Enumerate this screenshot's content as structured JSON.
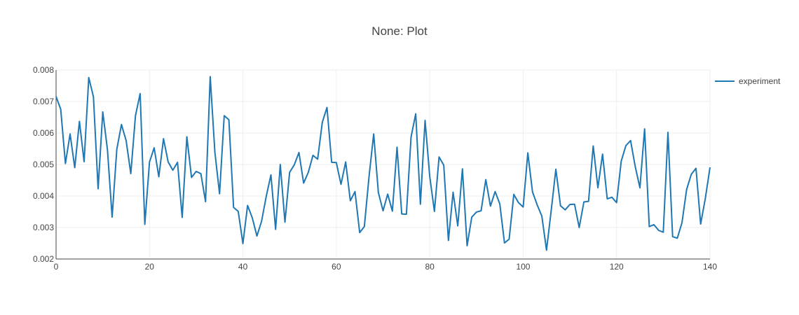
{
  "chart_data": {
    "type": "line",
    "title": "None: Plot",
    "xlabel": "",
    "ylabel": "",
    "xlim": [
      0,
      140
    ],
    "ylim": [
      0.002,
      0.008
    ],
    "x_ticks": [
      "0",
      "20",
      "40",
      "60",
      "80",
      "100",
      "120",
      "140"
    ],
    "y_ticks": [
      "0.002",
      "0.003",
      "0.004",
      "0.005",
      "0.006",
      "0.007",
      "0.008"
    ],
    "grid": true,
    "legend_position": "top-right",
    "colors": {
      "line": "#1f77b4",
      "grid": "#eeeeee",
      "axis": "#444444",
      "text": "#444444"
    },
    "series": [
      {
        "name": "experiment",
        "x": [
          0,
          1,
          2,
          3,
          4,
          5,
          6,
          7,
          8,
          9,
          10,
          11,
          12,
          13,
          14,
          15,
          16,
          17,
          18,
          19,
          20,
          21,
          22,
          23,
          24,
          25,
          26,
          27,
          28,
          29,
          30,
          31,
          32,
          33,
          34,
          35,
          36,
          37,
          38,
          39,
          40,
          41,
          42,
          43,
          44,
          45,
          46,
          47,
          48,
          49,
          50,
          51,
          52,
          53,
          54,
          55,
          56,
          57,
          58,
          59,
          60,
          61,
          62,
          63,
          64,
          65,
          66,
          67,
          68,
          69,
          70,
          71,
          72,
          73,
          74,
          75,
          76,
          77,
          78,
          79,
          80,
          81,
          82,
          83,
          84,
          85,
          86,
          87,
          88,
          89,
          90,
          91,
          92,
          93,
          94,
          95,
          96,
          97,
          98,
          99,
          100,
          101,
          102,
          103,
          104,
          105,
          106,
          107,
          108,
          109,
          110,
          111,
          112,
          113,
          114,
          115,
          116,
          117,
          118,
          119,
          120,
          121,
          122,
          123,
          124,
          125,
          126,
          127,
          128,
          129,
          130,
          131,
          132,
          133,
          134,
          135,
          136,
          137,
          138,
          139,
          140
        ],
        "y": [
          0.00716,
          0.00675,
          0.00503,
          0.00597,
          0.0049,
          0.00637,
          0.00509,
          0.00776,
          0.00715,
          0.00423,
          0.00667,
          0.00547,
          0.00333,
          0.00548,
          0.00627,
          0.00576,
          0.00471,
          0.00655,
          0.00725,
          0.0031,
          0.00508,
          0.00553,
          0.00461,
          0.00582,
          0.00508,
          0.00482,
          0.00507,
          0.00332,
          0.00588,
          0.00459,
          0.00478,
          0.00471,
          0.00382,
          0.00779,
          0.00539,
          0.00407,
          0.00655,
          0.00642,
          0.00364,
          0.00351,
          0.00249,
          0.0037,
          0.00331,
          0.00273,
          0.0032,
          0.00399,
          0.00467,
          0.00294,
          0.005,
          0.00317,
          0.00475,
          0.00499,
          0.00538,
          0.00441,
          0.00475,
          0.00529,
          0.00517,
          0.00634,
          0.00681,
          0.00507,
          0.00506,
          0.00437,
          0.00508,
          0.00385,
          0.00414,
          0.00284,
          0.00303,
          0.00461,
          0.00597,
          0.00411,
          0.00353,
          0.00406,
          0.00352,
          0.00555,
          0.00343,
          0.00342,
          0.00587,
          0.00661,
          0.00374,
          0.0064,
          0.00462,
          0.00351,
          0.00524,
          0.00498,
          0.00259,
          0.00412,
          0.00305,
          0.00486,
          0.00242,
          0.00333,
          0.00349,
          0.00353,
          0.00452,
          0.00368,
          0.00414,
          0.00375,
          0.00251,
          0.00263,
          0.00405,
          0.00379,
          0.00365,
          0.00537,
          0.00413,
          0.00372,
          0.00336,
          0.00228,
          0.00353,
          0.00485,
          0.00369,
          0.00356,
          0.00373,
          0.00374,
          0.003,
          0.00381,
          0.00383,
          0.00559,
          0.00426,
          0.00533,
          0.00391,
          0.00396,
          0.00379,
          0.00511,
          0.0056,
          0.00576,
          0.00493,
          0.00426,
          0.00613,
          0.00303,
          0.00309,
          0.00291,
          0.00285,
          0.00602,
          0.00271,
          0.00266,
          0.00315,
          0.00421,
          0.00469,
          0.00488,
          0.00311,
          0.00392,
          0.00491
        ]
      }
    ]
  }
}
